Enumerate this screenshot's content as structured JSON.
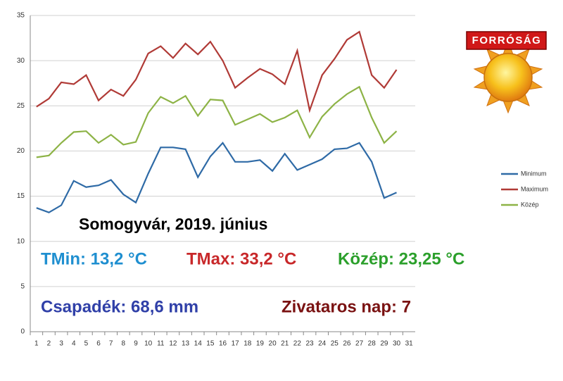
{
  "chart_data": {
    "type": "line",
    "categories": [
      "1",
      "2",
      "3",
      "4",
      "5",
      "6",
      "7",
      "8",
      "9",
      "10",
      "11",
      "12",
      "13",
      "14",
      "15",
      "16",
      "17",
      "18",
      "19",
      "20",
      "21",
      "22",
      "23",
      "24",
      "25",
      "26",
      "27",
      "28",
      "29",
      "30",
      "31"
    ],
    "series": [
      {
        "name": "Minimum",
        "color": "#2e6aa6",
        "values": [
          13.7,
          13.2,
          14.0,
          16.7,
          16.0,
          16.2,
          16.8,
          15.2,
          14.3,
          17.5,
          20.4,
          20.4,
          20.2,
          17.1,
          19.4,
          20.9,
          18.8,
          18.8,
          19.0,
          17.8,
          19.7,
          17.9,
          18.5,
          19.1,
          20.2,
          20.3,
          20.9,
          18.8,
          14.8,
          15.4,
          null
        ]
      },
      {
        "name": "Maximum",
        "color": "#b03a36",
        "values": [
          24.9,
          25.8,
          27.6,
          27.4,
          28.4,
          25.6,
          26.8,
          26.1,
          27.9,
          30.8,
          31.6,
          30.3,
          31.9,
          30.7,
          32.1,
          30.0,
          27.0,
          28.1,
          29.1,
          28.5,
          27.4,
          31.1,
          24.5,
          28.4,
          30.2,
          32.3,
          33.2,
          28.4,
          27.0,
          29.0,
          null
        ]
      },
      {
        "name": "Közép",
        "color": "#8db346",
        "values": [
          19.3,
          19.5,
          20.9,
          22.1,
          22.2,
          20.9,
          21.8,
          20.7,
          21.0,
          24.2,
          26.0,
          25.3,
          26.1,
          23.9,
          25.7,
          25.6,
          22.9,
          23.5,
          24.1,
          23.2,
          23.7,
          24.5,
          21.5,
          23.8,
          25.2,
          26.3,
          27.1,
          23.7,
          20.9,
          22.2,
          null
        ]
      }
    ],
    "ylim": [
      0,
      35
    ],
    "yticks": [
      0,
      5,
      10,
      15,
      20,
      25,
      30,
      35
    ],
    "grid": true,
    "legend": "right",
    "annotations": [
      {
        "text": "Somogyvár, 2019. június",
        "color": "#000000"
      },
      {
        "text": "TMin: 13,2 °C",
        "color": "#1f8fd0"
      },
      {
        "text": "TMax: 33,2 °C",
        "color": "#c8282a"
      },
      {
        "text": "Közép: 23,25 °C",
        "color": "#2ca02c"
      },
      {
        "text": "Csapadék:  68,6 mm",
        "color": "#3040a8"
      },
      {
        "text": "Zivataros nap: 7",
        "color": "#7a1212"
      }
    ],
    "badge": "FORRÓSÁG"
  }
}
